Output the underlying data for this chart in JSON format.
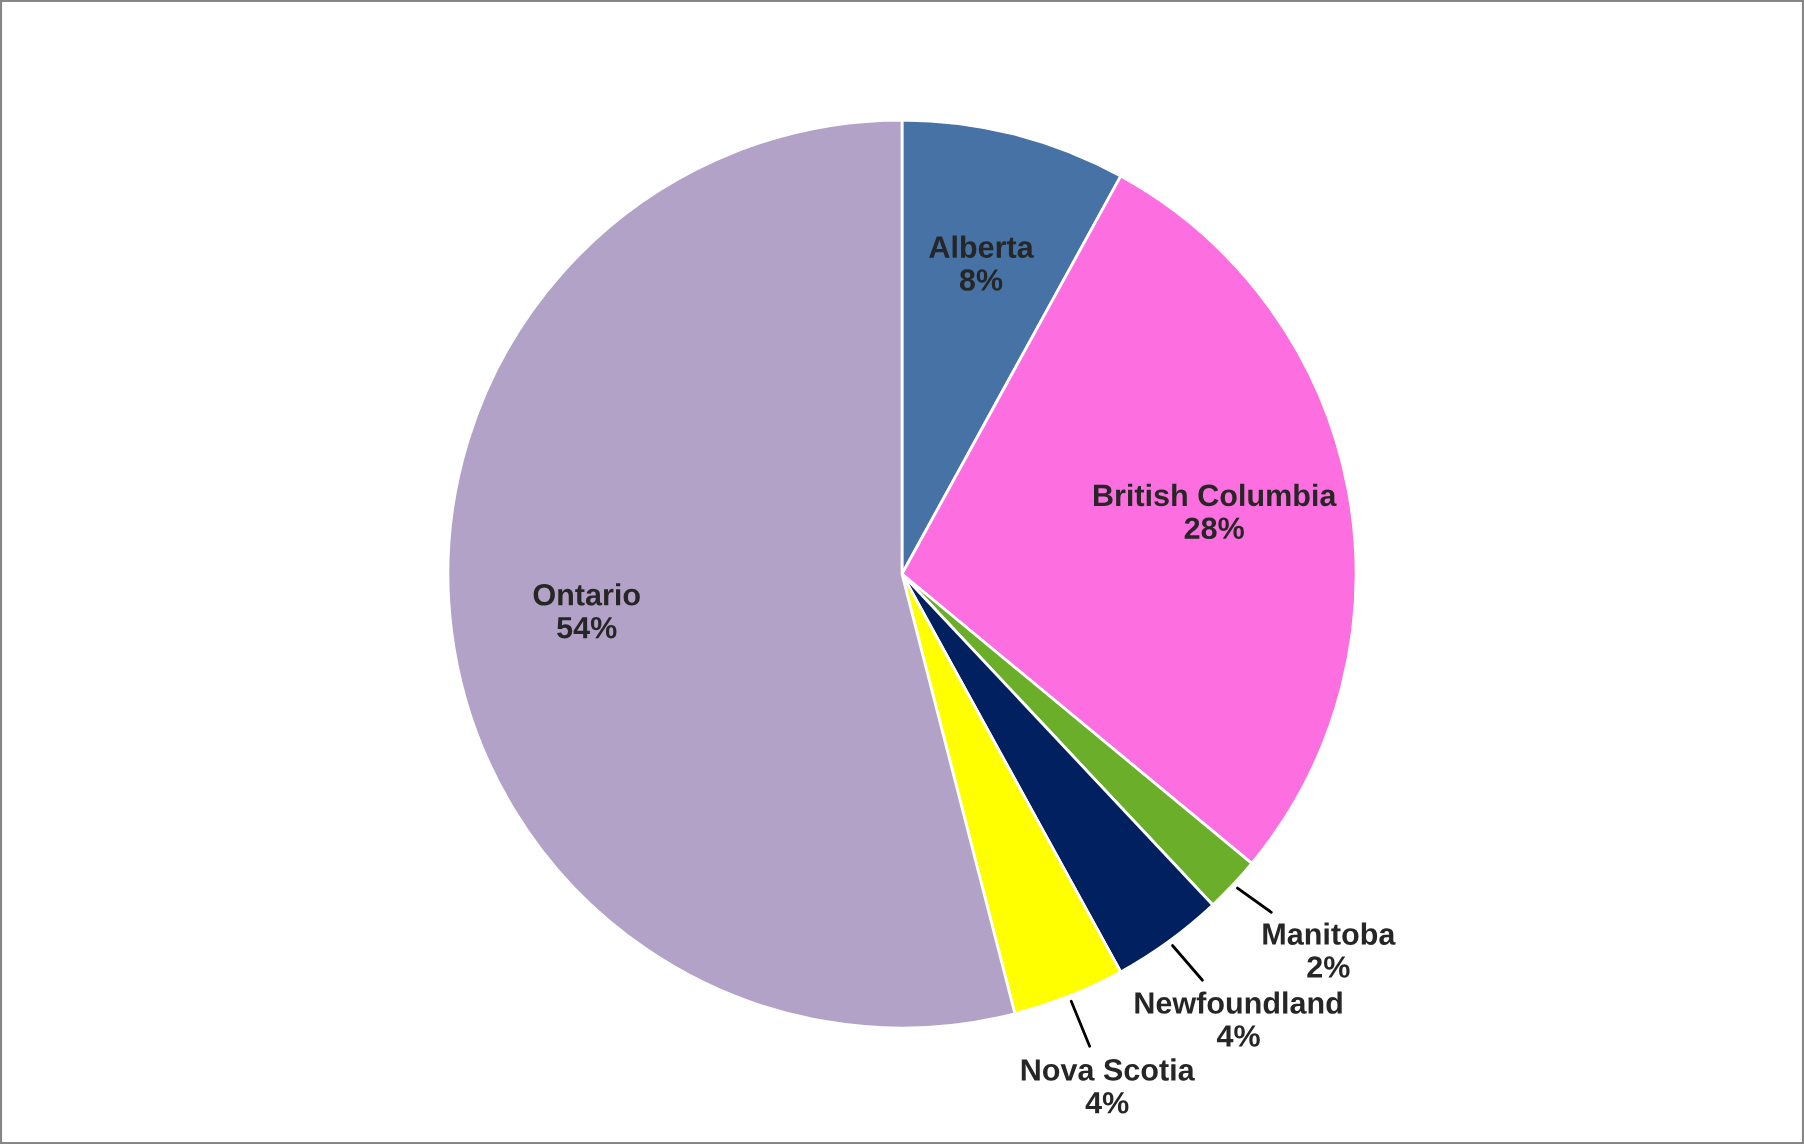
{
  "chart_data": {
    "type": "pie",
    "categories": [
      "Alberta",
      "British Columbia",
      "Manitoba",
      "Newfoundland",
      "Nova Scotia",
      "Ontario"
    ],
    "values": [
      8,
      28,
      2,
      4,
      4,
      54
    ],
    "value_labels": [
      "8%",
      "28%",
      "2%",
      "4%",
      "4%",
      "54%"
    ],
    "colors": [
      "#4672a6",
      "#fd6fe0",
      "#6aae2a",
      "#00205f",
      "#ffff00",
      "#b3a2c7"
    ],
    "legend": false
  }
}
